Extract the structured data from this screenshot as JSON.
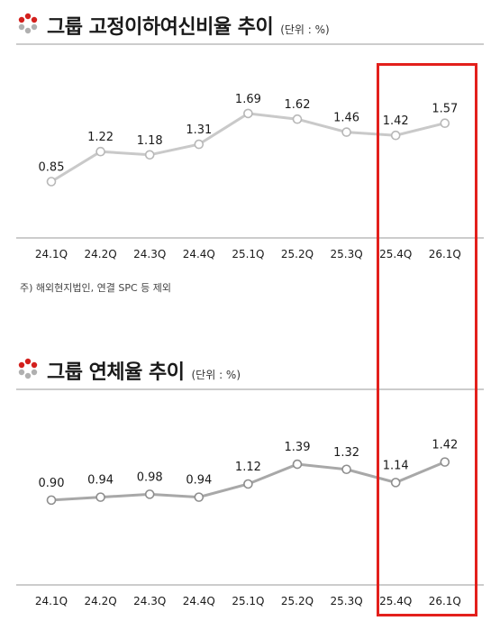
{
  "charts": [
    {
      "title": "그룹 고정이하여신비율 추이",
      "unit": "(단위 : %)",
      "footnote": "주) 해외현지법인, 연결 SPC 등 제외"
    },
    {
      "title": "그룹 연체율 추이",
      "unit": "(단위 : %)",
      "footnote": ""
    }
  ],
  "colors": {
    "line_chart1": "#c9c9c9",
    "line_chart2": "#a8a8a8",
    "highlight": "#e3201c",
    "axis": "#9a9a9a"
  },
  "chart_data": [
    {
      "type": "line",
      "title": "그룹 고정이하여신비율 추이",
      "categories": [
        "24.1Q",
        "24.2Q",
        "24.3Q",
        "24.4Q",
        "25.1Q",
        "25.2Q",
        "25.3Q",
        "25.4Q",
        "26.1Q"
      ],
      "series": [
        {
          "values": [
            0.85,
            1.22,
            1.18,
            1.31,
            1.69,
            1.62,
            1.46,
            1.42,
            1.57
          ]
        }
      ],
      "labels": [
        "0.85",
        "1.22",
        "1.18",
        "1.31",
        "1.69",
        "1.62",
        "1.46",
        "1.42",
        "1.57"
      ],
      "ylim": [
        0.3,
        1.8
      ],
      "xlabel": "",
      "ylabel": "",
      "grid": false,
      "highlighted_categories": [
        "25.4Q",
        "26.1Q"
      ]
    },
    {
      "type": "line",
      "title": "그룹 연체율 추이",
      "categories": [
        "24.1Q",
        "24.2Q",
        "24.3Q",
        "24.4Q",
        "25.1Q",
        "25.2Q",
        "25.3Q",
        "25.4Q",
        "26.1Q"
      ],
      "series": [
        {
          "values": [
            0.9,
            0.94,
            0.98,
            0.94,
            1.12,
            1.39,
            1.32,
            1.14,
            1.42
          ]
        }
      ],
      "labels": [
        "0.90",
        "0.94",
        "0.98",
        "0.94",
        "1.12",
        "1.39",
        "1.32",
        "1.14",
        "1.42"
      ],
      "ylim": [
        0.0,
        1.6
      ],
      "xlabel": "",
      "ylabel": "",
      "grid": false,
      "highlighted_categories": [
        "25.4Q",
        "26.1Q"
      ]
    }
  ]
}
